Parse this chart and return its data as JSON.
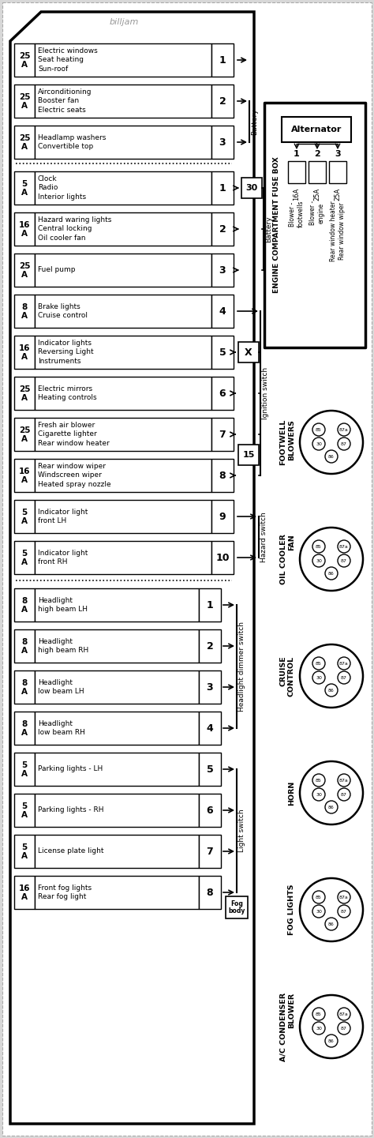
{
  "watermark": "billjam",
  "bg_color": "#d8d8d8",
  "grid_color": "#aaaaaa",
  "fuse_rows_top": [
    {
      "amp": "25",
      "desc": "Electric windows\nSeat heating\nSun-roof",
      "num": "1",
      "group": "none"
    },
    {
      "amp": "25",
      "desc": "Airconditioning\nBooster fan\nElectric seats",
      "num": "2",
      "group": "battery_top"
    },
    {
      "amp": "25",
      "desc": "Headlamp washers\nConvertible top",
      "num": "3",
      "group": "battery_top"
    }
  ],
  "fuse_rows_bat": [
    {
      "amp": "5",
      "desc": "Clock\nRadio\nInterior lights",
      "num": "1",
      "group": "battery_bot"
    },
    {
      "amp": "16",
      "desc": "Hazard waring lights\nCentral locking\nOil cooler fan",
      "num": "2",
      "group": "battery_bot"
    },
    {
      "amp": "25",
      "desc": "Fuel pump",
      "num": "3",
      "group": "battery_bot"
    }
  ],
  "fuse_rows_ign": [
    {
      "amp": "8",
      "desc": "Brake lights\nCruise control",
      "num": "4",
      "group": "none"
    },
    {
      "amp": "16",
      "desc": "Indicator lights\nReversing Light\nInstruments",
      "num": "5",
      "group": "ignition",
      "x_marker": true
    },
    {
      "amp": "25",
      "desc": "Electric mirrors\nHeating controls",
      "num": "6",
      "group": "ignition"
    },
    {
      "amp": "25",
      "desc": "Fresh air blower\nCigarette lighter\nRear window heater",
      "num": "7",
      "group": "ignition"
    },
    {
      "amp": "16",
      "desc": "Rear window wiper\nWindscreen wiper\nHeated spray nozzle",
      "num": "8",
      "group": "ignition15"
    }
  ],
  "fuse_rows_haz": [
    {
      "amp": "5",
      "desc": "Indicator light\nfront LH",
      "num": "9",
      "group": "hazard"
    },
    {
      "amp": "5",
      "desc": "Indicator light\nfront RH",
      "num": "10",
      "group": "hazard"
    }
  ],
  "fuse_rows_hdim": [
    {
      "amp": "8",
      "desc": "Headlight\nhigh beam LH",
      "num": "1",
      "group": "headlight_dimmer"
    },
    {
      "amp": "8",
      "desc": "Headlight\nhigh beam RH",
      "num": "2",
      "group": "headlight_dimmer"
    },
    {
      "amp": "8",
      "desc": "Headlight\nlow beam LH",
      "num": "3",
      "group": "headlight_dimmer"
    },
    {
      "amp": "8",
      "desc": "Headlight\nlow beam RH",
      "num": "4",
      "group": "headlight_dimmer"
    }
  ],
  "fuse_rows_lsw": [
    {
      "amp": "5",
      "desc": "Parking lights - LH",
      "num": "5",
      "group": "light_switch"
    },
    {
      "amp": "5",
      "desc": "Parking lights - RH",
      "num": "6",
      "group": "light_switch"
    },
    {
      "amp": "5",
      "desc": "License plate light",
      "num": "7",
      "group": "light_switch"
    },
    {
      "amp": "16",
      "desc": "Front fog lights\nRear fog light",
      "num": "8",
      "group": "light_switch"
    }
  ],
  "engine_fuses": [
    {
      "num": "1",
      "amp": "16A",
      "desc": "Blower -\nfootwells"
    },
    {
      "num": "2",
      "amp": "25A",
      "desc": "Blower -\nengine"
    },
    {
      "num": "3",
      "amp": "25A",
      "desc": "Rear window heater\nRear window wiper"
    }
  ],
  "connectors": [
    {
      "label": "FOOTWELL\nBLOWERS"
    },
    {
      "label": "OIL COOLER\nFAN"
    },
    {
      "label": "CRUISE\nCONTROL"
    },
    {
      "label": "HORN"
    },
    {
      "label": "FOG LIGHTS"
    },
    {
      "label": "A/C CONDENSER\nBLOWER"
    }
  ]
}
